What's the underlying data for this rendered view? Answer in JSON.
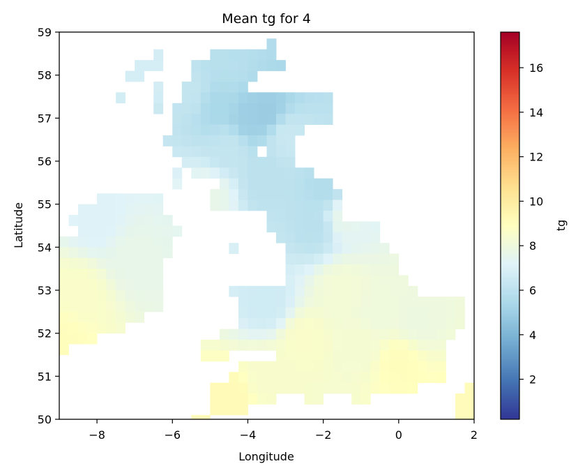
{
  "chart_data": {
    "type": "heatmap",
    "title": "Mean tg for 4",
    "xlabel": "Longitude",
    "ylabel": "Latitude",
    "colorbar_label": "tg",
    "xlim": [
      -9,
      2
    ],
    "ylim": [
      50,
      59
    ],
    "xticks": [
      -8,
      -6,
      -4,
      -2,
      0,
      2
    ],
    "xtick_labels": [
      "−8",
      "−6",
      "−4",
      "−2",
      "0",
      "2"
    ],
    "yticks": [
      50,
      51,
      52,
      53,
      54,
      55,
      56,
      57,
      58,
      59
    ],
    "ytick_labels": [
      "50",
      "51",
      "52",
      "53",
      "54",
      "55",
      "56",
      "57",
      "58",
      "59"
    ],
    "color_range": [
      0.2,
      17.6
    ],
    "colorbar_ticks": [
      2,
      4,
      6,
      8,
      10,
      12,
      14,
      16
    ],
    "colorbar_tick_labels": [
      "2",
      "4",
      "6",
      "8",
      "10",
      "12",
      "14",
      "16"
    ],
    "colormap": "RdYlBu_r",
    "colormap_stops": [
      "#313695",
      "#4575b4",
      "#74add1",
      "#abd9e9",
      "#e0f3f8",
      "#ffffbf",
      "#fee090",
      "#fdae61",
      "#f46d43",
      "#d73027",
      "#a50026"
    ],
    "grid_resolution": 0.25,
    "region_anchors": [
      {
        "lon": -4.0,
        "lat": 57.0,
        "value": 5.0
      },
      {
        "lon": -3.5,
        "lat": 57.1,
        "value": 4.9
      },
      {
        "lon": -4.8,
        "lat": 57.3,
        "value": 5.4
      },
      {
        "lon": -4.5,
        "lat": 58.2,
        "value": 5.8
      },
      {
        "lon": -5.5,
        "lat": 57.6,
        "value": 6.2
      },
      {
        "lon": -3.0,
        "lat": 56.6,
        "value": 6.4
      },
      {
        "lon": -4.5,
        "lat": 56.3,
        "value": 6.2
      },
      {
        "lon": -3.5,
        "lat": 55.5,
        "value": 6.0
      },
      {
        "lon": -2.0,
        "lat": 55.3,
        "value": 5.7
      },
      {
        "lon": -2.2,
        "lat": 54.5,
        "value": 5.9
      },
      {
        "lon": -5.0,
        "lat": 55.2,
        "value": 7.6
      },
      {
        "lon": -6.6,
        "lat": 58.0,
        "value": 6.8
      },
      {
        "lon": -1.5,
        "lat": 54.7,
        "value": 7.5
      },
      {
        "lon": -3.5,
        "lat": 52.7,
        "value": 6.6
      },
      {
        "lon": -8.0,
        "lat": 54.6,
        "value": 7.1
      },
      {
        "lon": -7.0,
        "lat": 53.8,
        "value": 7.6
      },
      {
        "lon": -8.5,
        "lat": 52.9,
        "value": 8.6
      },
      {
        "lon": -9.0,
        "lat": 51.8,
        "value": 9.0
      },
      {
        "lon": -1.5,
        "lat": 53.0,
        "value": 8.2
      },
      {
        "lon": -0.5,
        "lat": 52.5,
        "value": 8.0
      },
      {
        "lon": 0.5,
        "lat": 52.3,
        "value": 7.9
      },
      {
        "lon": -1.0,
        "lat": 51.7,
        "value": 8.3
      },
      {
        "lon": 0.0,
        "lat": 51.3,
        "value": 9.0
      },
      {
        "lon": -2.5,
        "lat": 51.8,
        "value": 8.6
      },
      {
        "lon": -3.5,
        "lat": 51.0,
        "value": 8.5
      },
      {
        "lon": -4.5,
        "lat": 50.5,
        "value": 9.2
      },
      {
        "lon": 1.8,
        "lat": 50.4,
        "value": 9.1
      }
    ],
    "land_mask_rows": [
      {
        "lat": [
          58.6,
          58.85
        ],
        "lon_ranges": [
          [
            -3.5,
            -3.25
          ]
        ]
      },
      {
        "lat": [
          58.35,
          58.6
        ],
        "lon_ranges": [
          [
            -6.5,
            -6.25
          ],
          [
            -5.0,
            -3.25
          ]
        ]
      },
      {
        "lat": [
          58.1,
          58.35
        ],
        "lon_ranges": [
          [
            -7.0,
            -6.25
          ],
          [
            -5.5,
            -3.0
          ]
        ]
      },
      {
        "lat": [
          57.85,
          58.1
        ],
        "lon_ranges": [
          [
            -7.25,
            -6.75
          ],
          [
            -5.5,
            -3.75
          ]
        ]
      },
      {
        "lat": [
          57.6,
          57.85
        ],
        "lon_ranges": [
          [
            -6.5,
            -6.25
          ],
          [
            -5.75,
            -4.0
          ]
        ]
      },
      {
        "lat": [
          57.35,
          57.6
        ],
        "lon_ranges": [
          [
            -7.5,
            -7.25
          ],
          [
            -6.5,
            -6.25
          ],
          [
            -5.75,
            -1.75
          ]
        ]
      },
      {
        "lat": [
          57.1,
          57.35
        ],
        "lon_ranges": [
          [
            -6.5,
            -6.25
          ],
          [
            -6.0,
            -1.75
          ]
        ]
      },
      {
        "lat": [
          56.85,
          57.1
        ],
        "lon_ranges": [
          [
            -6.0,
            -1.75
          ]
        ]
      },
      {
        "lat": [
          56.6,
          56.85
        ],
        "lon_ranges": [
          [
            -6.0,
            -2.5
          ]
        ]
      },
      {
        "lat": [
          56.35,
          56.6
        ],
        "lon_ranges": [
          [
            -6.25,
            -2.75
          ]
        ]
      },
      {
        "lat": [
          56.1,
          56.35
        ],
        "lon_ranges": [
          [
            -6.0,
            -3.75
          ],
          [
            -3.5,
            -2.75
          ]
        ]
      },
      {
        "lat": [
          55.85,
          56.1
        ],
        "lon_ranges": [
          [
            -5.75,
            -2.75
          ]
        ]
      },
      {
        "lat": [
          55.6,
          55.85
        ],
        "lon_ranges": [
          [
            -6.0,
            -5.75
          ],
          [
            -5.5,
            -2.25
          ]
        ]
      },
      {
        "lat": [
          55.35,
          55.6
        ],
        "lon_ranges": [
          [
            -6.0,
            -5.75
          ],
          [
            -4.75,
            -1.75
          ]
        ]
      },
      {
        "lat": [
          55.1,
          55.35
        ],
        "lon_ranges": [
          [
            -5.0,
            -1.5
          ]
        ]
      },
      {
        "lat": [
          54.85,
          55.1
        ],
        "lon_ranges": [
          [
            -5.0,
            -1.5
          ]
        ]
      },
      {
        "lat": [
          54.6,
          54.85
        ],
        "lon_ranges": [
          [
            -3.5,
            -1.5
          ]
        ]
      },
      {
        "lat": [
          54.35,
          54.6
        ],
        "lon_ranges": [
          [
            -3.5,
            -0.5
          ]
        ]
      },
      {
        "lat": [
          54.1,
          54.35
        ],
        "lon_ranges": [
          [
            -3.25,
            -0.5
          ]
        ]
      },
      {
        "lat": [
          53.85,
          54.1
        ],
        "lon_ranges": [
          [
            -4.5,
            -4.25
          ],
          [
            -3.0,
            -0.25
          ]
        ]
      },
      {
        "lat": [
          53.6,
          53.85
        ],
        "lon_ranges": [
          [
            -3.0,
            0.0
          ]
        ]
      },
      {
        "lat": [
          53.35,
          53.6
        ],
        "lon_ranges": [
          [
            -3.0,
            0.0
          ]
        ]
      },
      {
        "lat": [
          53.1,
          53.35
        ],
        "lon_ranges": [
          [
            -3.0,
            0.25
          ]
        ]
      },
      {
        "lat": [
          52.85,
          53.1
        ],
        "lon_ranges": [
          [
            -4.5,
            -4.25
          ],
          [
            -4.25,
            0.5
          ]
        ]
      },
      {
        "lat": [
          52.6,
          52.85
        ],
        "lon_ranges": [
          [
            -4.25,
            1.75
          ]
        ]
      },
      {
        "lat": [
          52.35,
          52.6
        ],
        "lon_ranges": [
          [
            -4.25,
            1.75
          ]
        ]
      },
      {
        "lat": [
          52.1,
          52.35
        ],
        "lon_ranges": [
          [
            -4.25,
            1.75
          ]
        ]
      },
      {
        "lat": [
          51.85,
          52.1
        ],
        "lon_ranges": [
          [
            -4.75,
            1.5
          ]
        ]
      },
      {
        "lat": [
          51.6,
          51.85
        ],
        "lon_ranges": [
          [
            -5.25,
            1.25
          ]
        ]
      },
      {
        "lat": [
          51.35,
          51.6
        ],
        "lon_ranges": [
          [
            -5.25,
            -4.5
          ],
          [
            -3.25,
            1.25
          ]
        ]
      },
      {
        "lat": [
          51.1,
          51.35
        ],
        "lon_ranges": [
          [
            -4.25,
            1.25
          ]
        ]
      },
      {
        "lat": [
          50.85,
          51.1
        ],
        "lon_ranges": [
          [
            -4.5,
            1.25
          ]
        ]
      },
      {
        "lat": [
          50.6,
          50.85
        ],
        "lon_ranges": [
          [
            -5.0,
            0.5
          ],
          [
            1.75,
            2.0
          ]
        ]
      },
      {
        "lat": [
          50.35,
          50.6
        ],
        "lon_ranges": [
          [
            -5.0,
            -3.25
          ],
          [
            -2.5,
            -2.0
          ],
          [
            -1.25,
            -0.75
          ],
          [
            1.5,
            2.0
          ]
        ]
      },
      {
        "lat": [
          50.1,
          50.35
        ],
        "lon_ranges": [
          [
            -5.0,
            -4.0
          ],
          [
            1.5,
            2.0
          ]
        ]
      },
      {
        "lat": [
          49.85,
          50.1
        ],
        "lon_ranges": [
          [
            -5.5,
            -5.0
          ],
          [
            1.5,
            2.0
          ]
        ]
      },
      {
        "lat": [
          55.0,
          55.25
        ],
        "lon_ranges": [
          [
            -8.0,
            -6.25
          ]
        ]
      },
      {
        "lat": [
          54.75,
          55.0
        ],
        "lon_ranges": [
          [
            -8.5,
            -6.25
          ]
        ]
      },
      {
        "lat": [
          54.5,
          54.75
        ],
        "lon_ranges": [
          [
            -8.75,
            -6.0
          ]
        ]
      },
      {
        "lat": [
          54.25,
          54.5
        ],
        "lon_ranges": [
          [
            -8.5,
            -5.75
          ]
        ]
      },
      {
        "lat": [
          54.0,
          54.25
        ],
        "lon_ranges": [
          [
            -9.0,
            -6.0
          ]
        ]
      },
      {
        "lat": [
          53.75,
          54.0
        ],
        "lon_ranges": [
          [
            -9.0,
            -6.0
          ]
        ]
      },
      {
        "lat": [
          53.5,
          53.75
        ],
        "lon_ranges": [
          [
            -9.0,
            -6.25
          ]
        ]
      },
      {
        "lat": [
          53.25,
          53.5
        ],
        "lon_ranges": [
          [
            -9.0,
            -6.25
          ]
        ]
      },
      {
        "lat": [
          53.0,
          53.25
        ],
        "lon_ranges": [
          [
            -9.0,
            -6.25
          ]
        ]
      },
      {
        "lat": [
          52.75,
          53.0
        ],
        "lon_ranges": [
          [
            -9.0,
            -6.25
          ]
        ]
      },
      {
        "lat": [
          52.5,
          52.75
        ],
        "lon_ranges": [
          [
            -9.0,
            -6.25
          ]
        ]
      },
      {
        "lat": [
          52.25,
          52.5
        ],
        "lon_ranges": [
          [
            -9.0,
            -6.75
          ]
        ]
      },
      {
        "lat": [
          52.0,
          52.25
        ],
        "lon_ranges": [
          [
            -9.0,
            -7.25
          ]
        ]
      },
      {
        "lat": [
          51.75,
          52.0
        ],
        "lon_ranges": [
          [
            -9.0,
            -8.0
          ]
        ]
      },
      {
        "lat": [
          51.5,
          51.75
        ],
        "lon_ranges": [
          [
            -9.0,
            -8.75
          ]
        ]
      }
    ]
  }
}
